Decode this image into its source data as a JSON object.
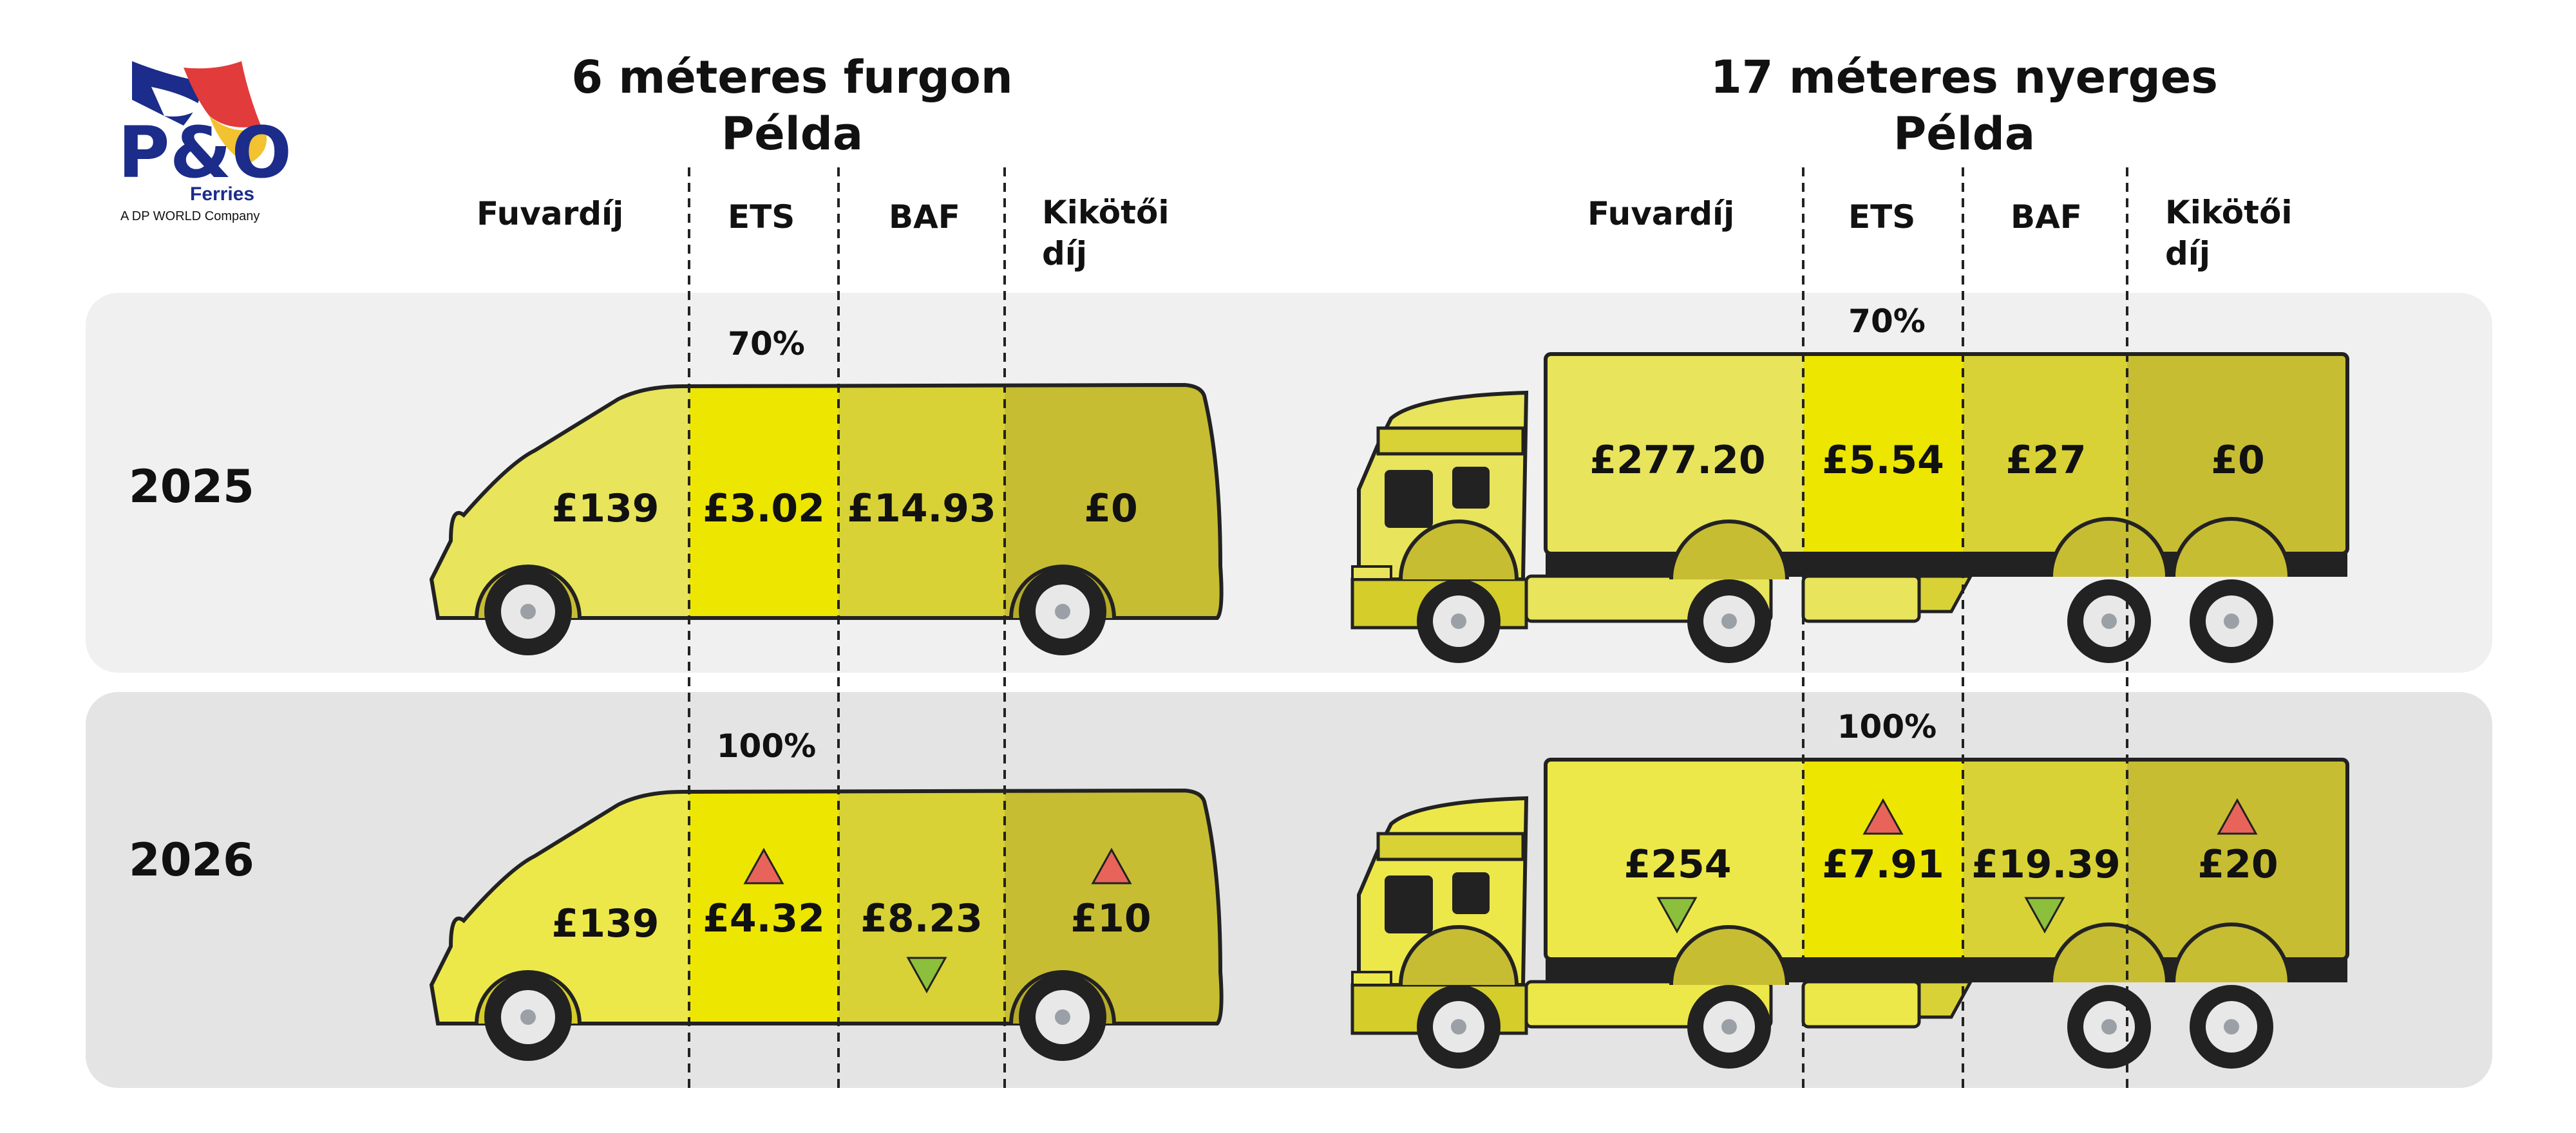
{
  "logo": {
    "mark": "P&O",
    "line1": "Ferries",
    "line2": "A DP WORLD Company"
  },
  "van": {
    "title_line1": "6 méteres furgon",
    "title_line2": "Példa",
    "columns": [
      "Fuvardíj",
      "ETS",
      "BAF",
      "Kikötői",
      "díj"
    ]
  },
  "truck": {
    "title_line1": "17 méteres nyerges",
    "title_line2": "Példa",
    "columns": [
      "Fuvardíj",
      "ETS",
      "BAF",
      "Kikötői",
      "díj"
    ]
  },
  "years": [
    "2025",
    "2026"
  ],
  "ets_share": [
    "70%",
    "100%"
  ],
  "values": {
    "van_2025": [
      "£139",
      "£3.02",
      "£14.93",
      "£0"
    ],
    "van_2026": [
      "£139",
      "£4.32",
      "£8.23",
      "£10"
    ],
    "truck_2025": [
      "£277.20",
      "£5.54",
      "£27",
      "£0"
    ],
    "truck_2026": [
      "£254",
      "£7.91",
      "£19.39",
      "£20"
    ]
  },
  "changes_2026": {
    "van": [
      "none",
      "up",
      "down",
      "up"
    ],
    "truck": [
      "down",
      "up",
      "down",
      "up"
    ]
  },
  "icons": {
    "up": "red-up-triangle-icon",
    "down": "green-down-triangle-icon"
  },
  "colors": {
    "panel_2025": "#f0f0f0",
    "panel_2026": "#e4e4e4",
    "fuvardij_zone": "#e8e45c",
    "ets_zone": "#ede600",
    "baf_zone": "#d8d236",
    "kikotoi_zone": "#c7bd33",
    "increase": "#e8645a",
    "decrease": "#8cbf3c"
  }
}
